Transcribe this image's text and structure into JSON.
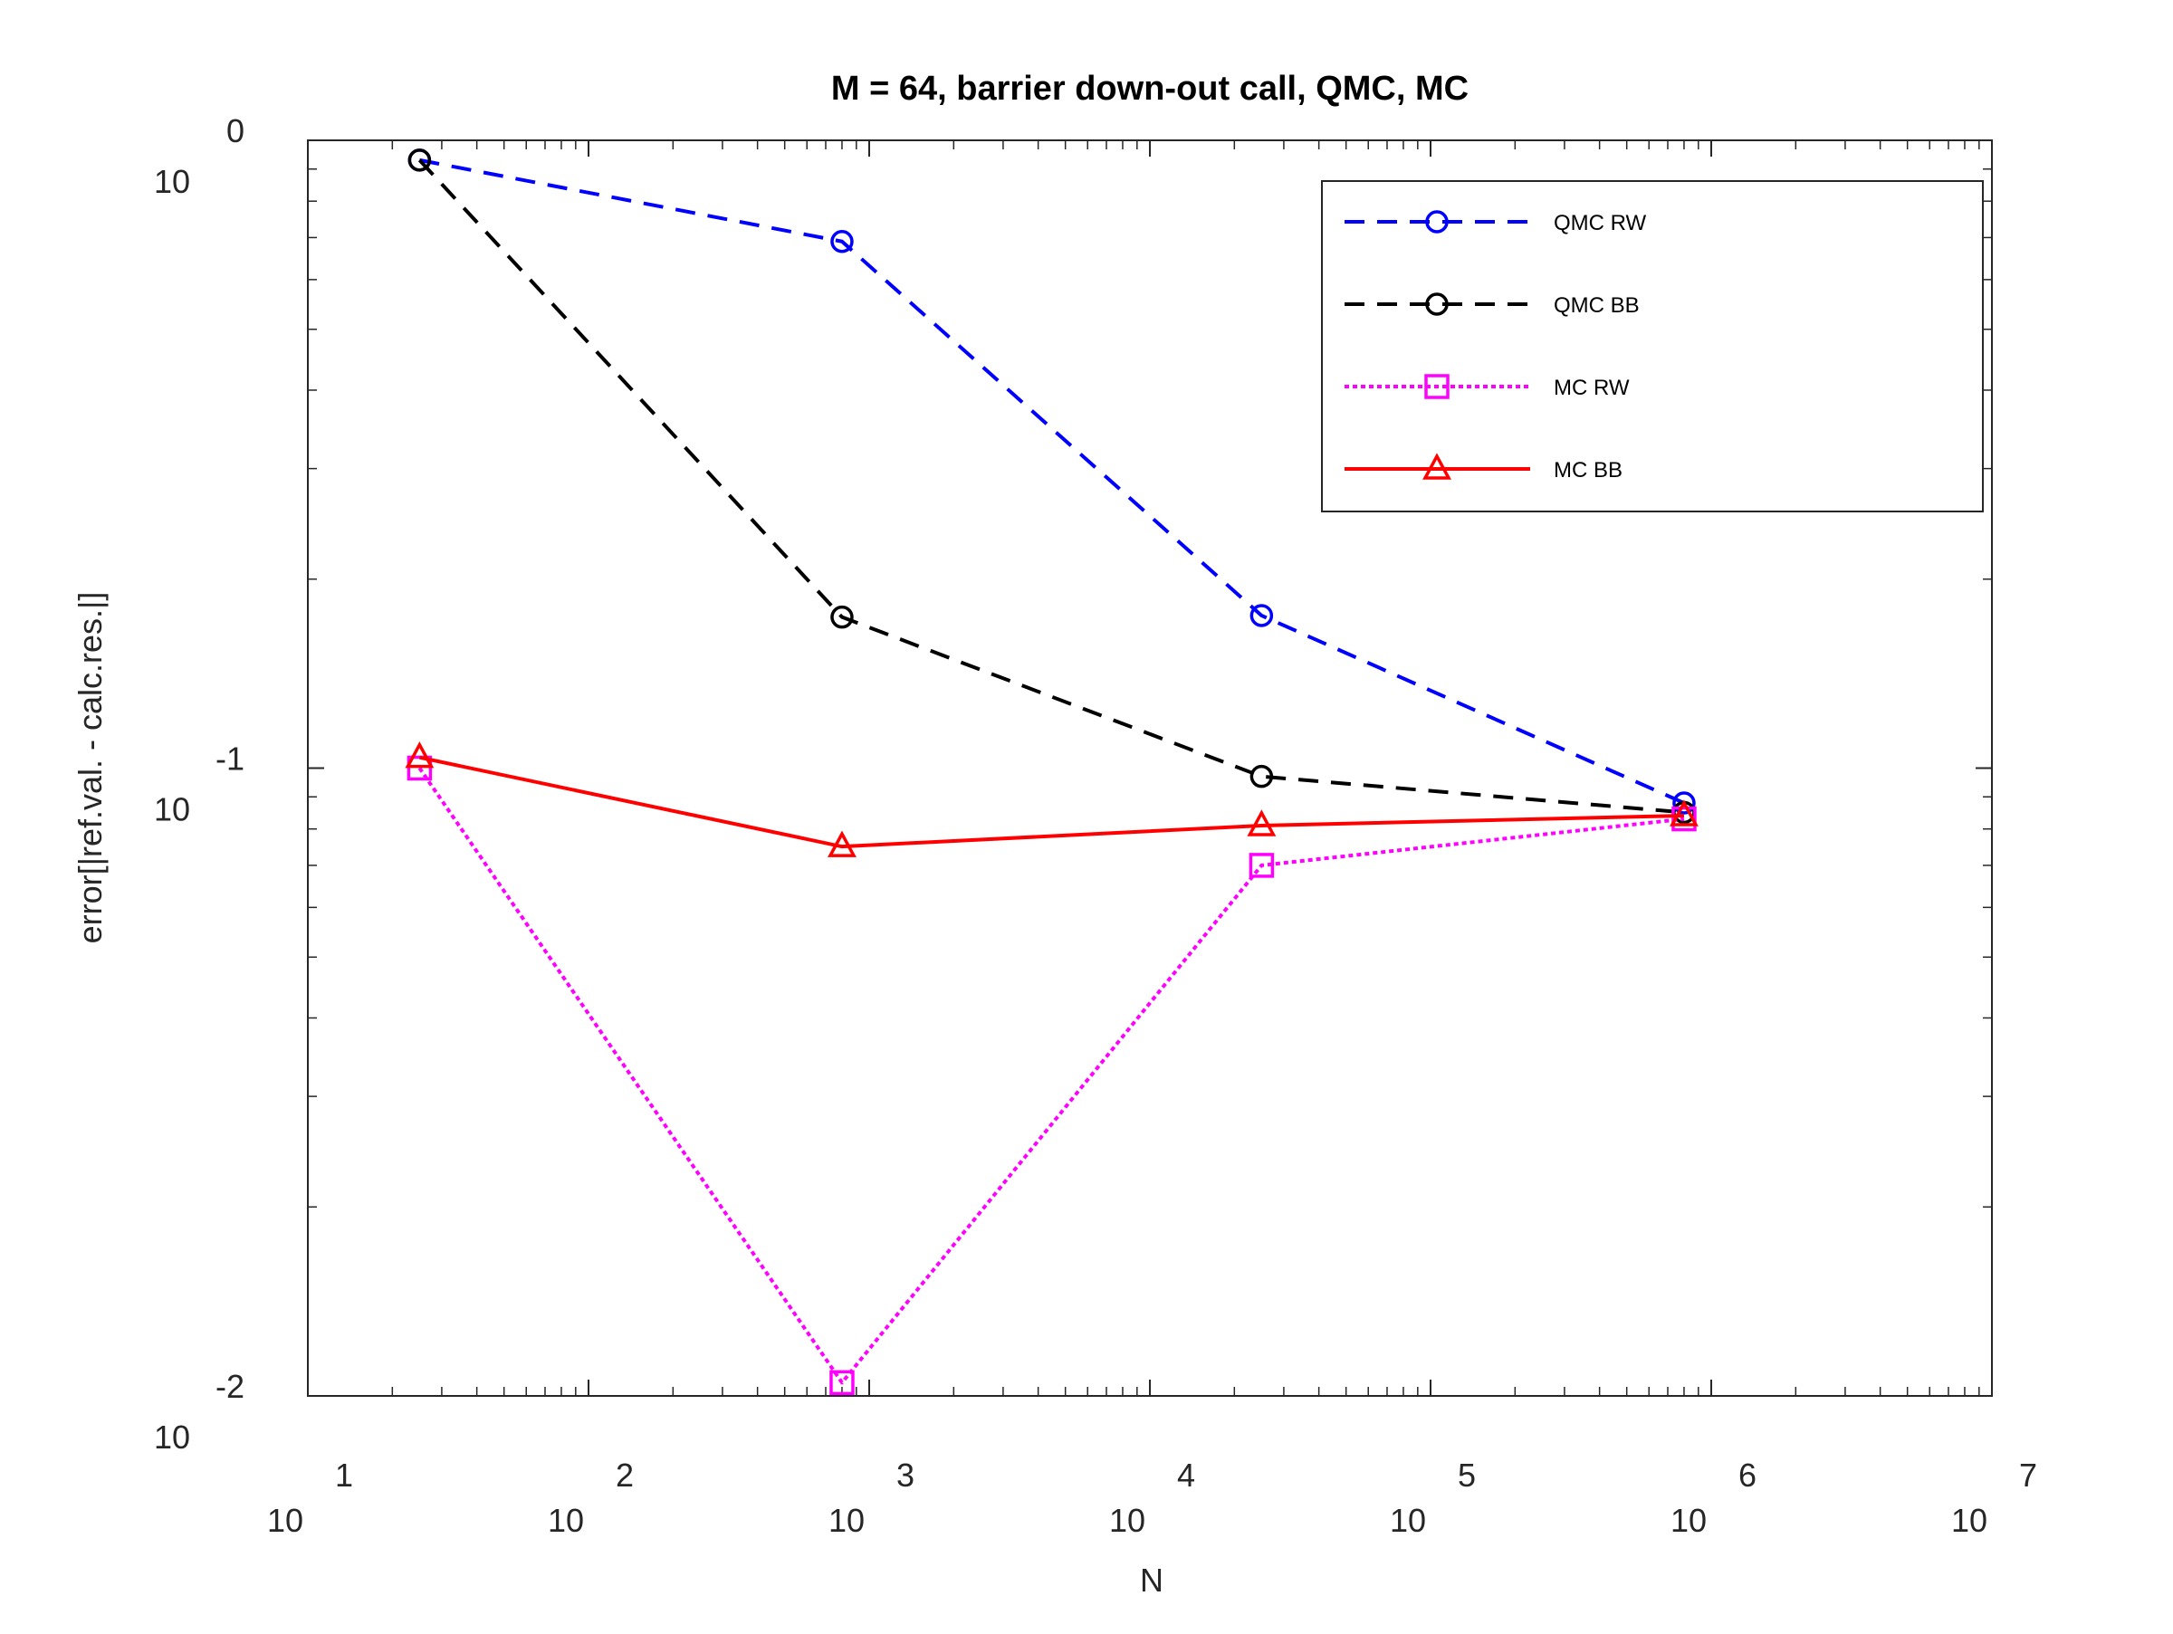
{
  "chart_data": {
    "type": "line",
    "title": "M = 64, barrier down-out call, QMC, MC",
    "xlabel": "N",
    "ylabel": "error[|ref.val. - calc.res.|]",
    "xscale": "log",
    "yscale": "log",
    "xlim": [
      10,
      10000000
    ],
    "ylim": [
      0.01,
      1
    ],
    "x": [
      25,
      800,
      25000,
      800000
    ],
    "xticks": [
      {
        "base": "10",
        "exp": "1"
      },
      {
        "base": "10",
        "exp": "2"
      },
      {
        "base": "10",
        "exp": "3"
      },
      {
        "base": "10",
        "exp": "4"
      },
      {
        "base": "10",
        "exp": "5"
      },
      {
        "base": "10",
        "exp": "6"
      },
      {
        "base": "10",
        "exp": "7"
      }
    ],
    "yticks": [
      {
        "base": "10",
        "exp": "0"
      },
      {
        "base": "10",
        "exp": "-1"
      },
      {
        "base": "10",
        "exp": "-2"
      }
    ],
    "grid": false,
    "legend_position": "top-right",
    "series": [
      {
        "name": "QMC RW",
        "values": [
          0.93,
          0.69,
          0.175,
          0.088
        ],
        "color": "#0000ff",
        "dash": "dashed",
        "marker": "circle"
      },
      {
        "name": "QMC BB",
        "values": [
          0.93,
          0.174,
          0.097,
          0.085
        ],
        "color": "#000000",
        "dash": "dashed",
        "marker": "circle"
      },
      {
        "name": "MC RW",
        "values": [
          0.1,
          0.0105,
          0.07,
          0.083
        ],
        "color": "#ff00ff",
        "dash": "dotted",
        "marker": "square"
      },
      {
        "name": "MC BB",
        "values": [
          0.104,
          0.075,
          0.081,
          0.084
        ],
        "color": "#ff0000",
        "dash": "solid",
        "marker": "triangle"
      }
    ]
  }
}
